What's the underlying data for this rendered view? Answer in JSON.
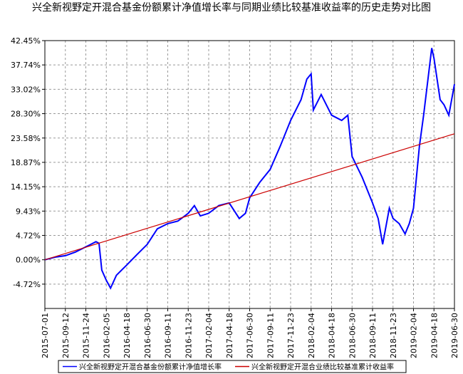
{
  "chart_data": {
    "type": "line",
    "title": "兴全新视野定开混合基金份额累计净值增长率与同期业绩比较基准收益率的历史走势对比图",
    "ylim": [
      -9.43,
      42.45
    ],
    "yticks": [
      {
        "value": 42.45,
        "label": "42.45%"
      },
      {
        "value": 37.74,
        "label": "37.74%"
      },
      {
        "value": 33.02,
        "label": "33.02%"
      },
      {
        "value": 28.3,
        "label": "28.30%"
      },
      {
        "value": 23.58,
        "label": "23.58%"
      },
      {
        "value": 18.87,
        "label": "18.87%"
      },
      {
        "value": 14.15,
        "label": "14.15%"
      },
      {
        "value": 9.43,
        "label": "9.43%"
      },
      {
        "value": 4.72,
        "label": "4.72%"
      },
      {
        "value": 0.0,
        "label": "0.00%"
      },
      {
        "value": -4.72,
        "label": "-4.72%"
      }
    ],
    "xlim": [
      "2015-07-01",
      "2019-06-30"
    ],
    "xticks": [
      "2015-07-01",
      "2015-09-12",
      "2015-11-24",
      "2016-02-05",
      "2016-04-18",
      "2016-06-30",
      "2016-09-11",
      "2016-11-23",
      "2017-02-04",
      "2017-04-18",
      "2017-06-30",
      "2017-09-11",
      "2017-11-23",
      "2018-02-04",
      "2018-04-18",
      "2018-06-30",
      "2018-09-11",
      "2018-11-23",
      "2019-02-04",
      "2019-04-18",
      "2019-06-30"
    ],
    "grid": true,
    "series": [
      {
        "name": "兴全新视野定开混合基金份额累计净值增长率",
        "color": "#0000ff",
        "x": [
          "2015-07-01",
          "2015-08-06",
          "2015-09-12",
          "2015-10-18",
          "2015-11-24",
          "2015-12-30",
          "2016-01-10",
          "2016-01-20",
          "2016-02-05",
          "2016-02-20",
          "2016-03-12",
          "2016-04-18",
          "2016-05-24",
          "2016-06-30",
          "2016-08-05",
          "2016-09-11",
          "2016-10-17",
          "2016-11-23",
          "2016-12-15",
          "2017-01-05",
          "2017-02-04",
          "2017-03-12",
          "2017-04-18",
          "2017-05-24",
          "2017-06-15",
          "2017-06-30",
          "2017-08-05",
          "2017-09-11",
          "2017-10-17",
          "2017-11-23",
          "2017-12-30",
          "2018-01-20",
          "2018-02-04",
          "2018-02-12",
          "2018-03-12",
          "2018-04-18",
          "2018-05-24",
          "2018-06-15",
          "2018-06-30",
          "2018-08-05",
          "2018-09-11",
          "2018-10-01",
          "2018-10-17",
          "2018-11-10",
          "2018-11-23",
          "2018-12-15",
          "2019-01-05",
          "2019-01-20",
          "2019-02-04",
          "2019-02-25",
          "2019-03-12",
          "2019-04-10",
          "2019-04-18",
          "2019-05-10",
          "2019-05-24",
          "2019-06-10",
          "2019-06-30"
        ],
        "values": [
          0,
          0.5,
          0.8,
          1.5,
          2.5,
          3.5,
          3.2,
          -2,
          -4,
          -5.5,
          -3,
          -1,
          1,
          3,
          6,
          7,
          7.5,
          9,
          10.5,
          8.5,
          9,
          10.5,
          11,
          8,
          9,
          12,
          15,
          17.5,
          22,
          27,
          31,
          35,
          36,
          29,
          32,
          28,
          27,
          28,
          20,
          16,
          11,
          8,
          3,
          10,
          8,
          7,
          5,
          7,
          10,
          22,
          28,
          41,
          39,
          31,
          30,
          28,
          34
        ]
      },
      {
        "name": "兴全新视野定开混合业绩比较基准累计收益率",
        "color": "#cc0000",
        "x": [
          "2015-07-01",
          "2019-06-30"
        ],
        "values": [
          0,
          24.4
        ]
      }
    ]
  }
}
